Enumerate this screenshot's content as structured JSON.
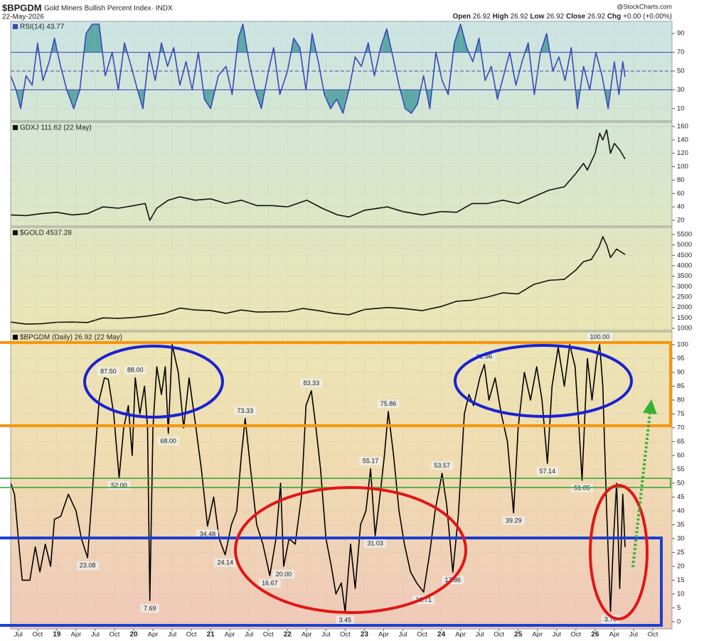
{
  "header": {
    "symbol": "$BPGDM",
    "name": "Gold Miners Bullish Percent Index· INDX",
    "date": "22-May-2026",
    "watermark": "@StockCharts.com",
    "quote": [
      {
        "label": "Open",
        "value": "26.92"
      },
      {
        "label": "High",
        "value": "26.92"
      },
      {
        "label": "Low",
        "value": "26.92"
      },
      {
        "label": "Close",
        "value": "26.92"
      },
      {
        "label": "Chg",
        "value": "+0.00 (+0.00%)"
      }
    ]
  },
  "chart_data": [
    {
      "type": "line",
      "title": "RSI(14) 43.77",
      "color": "#3a46b8",
      "fill_color": "#5ea9a8",
      "grid": true,
      "xlim": [
        2018.4,
        2027.0
      ],
      "ylim": [
        -3,
        103
      ],
      "yticks": [
        10,
        30,
        50,
        70,
        90
      ],
      "overbought": 70,
      "midline": 50,
      "oversold": 30,
      "x": [
        2018.4,
        2018.47,
        2018.53,
        2018.6,
        2018.68,
        2018.75,
        2018.82,
        2018.9,
        2018.97,
        2019.05,
        2019.13,
        2019.22,
        2019.3,
        2019.38,
        2019.46,
        2019.55,
        2019.63,
        2019.72,
        2019.8,
        2019.88,
        2019.95,
        2020.05,
        2020.12,
        2020.2,
        2020.28,
        2020.36,
        2020.44,
        2020.52,
        2020.6,
        2020.68,
        2020.76,
        2020.84,
        2020.92,
        2021.0,
        2021.1,
        2021.2,
        2021.28,
        2021.36,
        2021.42,
        2021.5,
        2021.58,
        2021.66,
        2021.74,
        2021.82,
        2021.9,
        2022.0,
        2022.08,
        2022.16,
        2022.24,
        2022.32,
        2022.4,
        2022.48,
        2022.56,
        2022.64,
        2022.72,
        2022.8,
        2022.88,
        2022.96,
        2023.05,
        2023.13,
        2023.21,
        2023.29,
        2023.37,
        2023.45,
        2023.53,
        2023.61,
        2023.69,
        2023.77,
        2023.85,
        2023.93,
        2024.01,
        2024.09,
        2024.17,
        2024.25,
        2024.33,
        2024.41,
        2024.49,
        2024.57,
        2024.65,
        2024.73,
        2024.81,
        2024.89,
        2024.97,
        2025.05,
        2025.13,
        2025.21,
        2025.29,
        2025.37,
        2025.45,
        2025.53,
        2025.61,
        2025.69,
        2025.77,
        2025.85,
        2025.93,
        2026.01,
        2026.09,
        2026.17,
        2026.25,
        2026.31,
        2026.36,
        2026.39
      ],
      "values": [
        45,
        30,
        10,
        45,
        35,
        80,
        40,
        60,
        85,
        55,
        30,
        10,
        30,
        90,
        100,
        100,
        45,
        70,
        30,
        80,
        60,
        30,
        10,
        70,
        40,
        80,
        55,
        75,
        35,
        60,
        30,
        70,
        20,
        10,
        45,
        55,
        25,
        85,
        100,
        60,
        30,
        10,
        45,
        75,
        25,
        50,
        85,
        75,
        30,
        90,
        60,
        25,
        10,
        20,
        5,
        30,
        65,
        55,
        80,
        45,
        75,
        95,
        65,
        35,
        10,
        5,
        15,
        45,
        10,
        70,
        40,
        25,
        80,
        100,
        75,
        60,
        85,
        40,
        55,
        20,
        45,
        70,
        35,
        60,
        80,
        25,
        70,
        90,
        50,
        65,
        40,
        75,
        10,
        55,
        30,
        70,
        45,
        10,
        60,
        25,
        60,
        43.77
      ]
    },
    {
      "type": "line",
      "title": "GDXJ 111.62 (22 May)",
      "color": "#111111",
      "grid": true,
      "xlim": [
        2018.4,
        2027.0
      ],
      "ylim": [
        11.5,
        166.4
      ],
      "yticks": [
        20,
        40,
        60,
        80,
        100,
        120,
        140,
        160
      ],
      "x": [
        2018.4,
        2018.6,
        2018.8,
        2019.0,
        2019.2,
        2019.4,
        2019.6,
        2019.8,
        2020.0,
        2020.15,
        2020.21,
        2020.3,
        2020.45,
        2020.6,
        2020.8,
        2021.0,
        2021.2,
        2021.4,
        2021.6,
        2021.8,
        2022.0,
        2022.25,
        2022.45,
        2022.65,
        2022.8,
        2023.0,
        2023.3,
        2023.5,
        2023.75,
        2024.0,
        2024.2,
        2024.4,
        2024.6,
        2024.8,
        2025.0,
        2025.2,
        2025.4,
        2025.6,
        2025.75,
        2025.85,
        2025.9,
        2026.0,
        2026.06,
        2026.1,
        2026.15,
        2026.2,
        2026.25,
        2026.32,
        2026.39
      ],
      "values": [
        28,
        27,
        30,
        32,
        28,
        30,
        40,
        38,
        42,
        45,
        20,
        38,
        50,
        55,
        50,
        52,
        45,
        50,
        42,
        42,
        40,
        50,
        38,
        28,
        25,
        35,
        40,
        33,
        28,
        33,
        32,
        45,
        45,
        50,
        45,
        55,
        65,
        70,
        90,
        105,
        95,
        120,
        150,
        140,
        155,
        120,
        135,
        125,
        111.62
      ]
    },
    {
      "type": "line",
      "title": "$GOLD 4537.28",
      "color": "#111111",
      "grid": true,
      "xlim": [
        2018.4,
        2027.0
      ],
      "ylim": [
        898,
        5841
      ],
      "yticks": [
        1000,
        1500,
        2000,
        2500,
        3000,
        3500,
        4000,
        4500,
        5000,
        5500
      ],
      "x": [
        2018.4,
        2018.6,
        2018.8,
        2019.0,
        2019.2,
        2019.4,
        2019.6,
        2019.8,
        2020.0,
        2020.2,
        2020.4,
        2020.6,
        2020.8,
        2021.0,
        2021.2,
        2021.4,
        2021.6,
        2021.8,
        2022.0,
        2022.2,
        2022.4,
        2022.6,
        2022.8,
        2023.0,
        2023.3,
        2023.5,
        2023.75,
        2024.0,
        2024.2,
        2024.4,
        2024.6,
        2024.8,
        2025.0,
        2025.2,
        2025.4,
        2025.6,
        2025.75,
        2025.85,
        2025.95,
        2026.05,
        2026.1,
        2026.15,
        2026.2,
        2026.28,
        2026.39
      ],
      "values": [
        1300,
        1200,
        1220,
        1290,
        1300,
        1280,
        1500,
        1480,
        1520,
        1600,
        1720,
        1970,
        1880,
        1850,
        1720,
        1880,
        1780,
        1790,
        1800,
        1950,
        1850,
        1720,
        1650,
        1900,
        2000,
        1950,
        1850,
        2050,
        2300,
        2350,
        2500,
        2700,
        2650,
        3100,
        3300,
        3350,
        3800,
        4200,
        4300,
        4900,
        5400,
        5000,
        4400,
        4800,
        4537.28
      ]
    },
    {
      "type": "line",
      "title": "$BPGDM (Daily) 26.92 (22 May)",
      "color": "#000000",
      "grid": true,
      "xlim": [
        2018.4,
        2027.0
      ],
      "ylim": [
        -2.6,
        104.6
      ],
      "yticks": [
        0,
        5,
        10,
        15,
        20,
        25,
        30,
        35,
        40,
        45,
        50,
        55,
        60,
        65,
        70,
        75,
        80,
        85,
        90,
        95,
        100
      ],
      "xticks": [
        {
          "value": 2018.5,
          "label": "Jul"
        },
        {
          "value": 2018.75,
          "label": "Oct"
        },
        {
          "value": 2019,
          "label": "19"
        },
        {
          "value": 2019.25,
          "label": "Apr"
        },
        {
          "value": 2019.5,
          "label": "Jul"
        },
        {
          "value": 2019.75,
          "label": "Oct"
        },
        {
          "value": 2020,
          "label": "20"
        },
        {
          "value": 2020.25,
          "label": "Apr"
        },
        {
          "value": 2020.5,
          "label": "Jul"
        },
        {
          "value": 2020.75,
          "label": "Oct"
        },
        {
          "value": 2021,
          "label": "21"
        },
        {
          "value": 2021.25,
          "label": "Apr"
        },
        {
          "value": 2021.5,
          "label": "Jul"
        },
        {
          "value": 2021.75,
          "label": "Oct"
        },
        {
          "value": 2022,
          "label": "22"
        },
        {
          "value": 2022.25,
          "label": "Apr"
        },
        {
          "value": 2022.5,
          "label": "Jul"
        },
        {
          "value": 2022.75,
          "label": "Oct"
        },
        {
          "value": 2023,
          "label": "23"
        },
        {
          "value": 2023.25,
          "label": "Apr"
        },
        {
          "value": 2023.5,
          "label": "Jul"
        },
        {
          "value": 2023.75,
          "label": "Oct"
        },
        {
          "value": 2024,
          "label": "24"
        },
        {
          "value": 2024.25,
          "label": "Apr"
        },
        {
          "value": 2024.5,
          "label": "Jul"
        },
        {
          "value": 2024.75,
          "label": "Oct"
        },
        {
          "value": 2025,
          "label": "25"
        },
        {
          "value": 2025.25,
          "label": "Apr"
        },
        {
          "value": 2025.5,
          "label": "Jul"
        },
        {
          "value": 2025.75,
          "label": "Oct"
        },
        {
          "value": 2026,
          "label": "26"
        },
        {
          "value": 2026.25,
          "label": "Apr"
        },
        {
          "value": 2026.5,
          "label": "Jul"
        },
        {
          "value": 2026.75,
          "label": "Oct"
        }
      ],
      "x": [
        2018.4,
        2018.45,
        2018.5,
        2018.55,
        2018.65,
        2018.72,
        2018.78,
        2018.85,
        2018.92,
        2018.97,
        2019.05,
        2019.15,
        2019.25,
        2019.32,
        2019.4,
        2019.47,
        2019.55,
        2019.62,
        2019.67,
        2019.74,
        2019.81,
        2019.87,
        2019.93,
        2019.98,
        2020.02,
        2020.08,
        2020.14,
        2020.18,
        2020.21,
        2020.25,
        2020.3,
        2020.36,
        2020.41,
        2020.45,
        2020.5,
        2020.58,
        2020.65,
        2020.72,
        2020.8,
        2020.88,
        2020.96,
        2021.04,
        2021.11,
        2021.19,
        2021.27,
        2021.34,
        2021.4,
        2021.45,
        2021.52,
        2021.6,
        2021.68,
        2021.77,
        2021.85,
        2021.91,
        2021.95,
        2022.02,
        2022.1,
        2022.18,
        2022.24,
        2022.31,
        2022.37,
        2022.43,
        2022.5,
        2022.57,
        2022.63,
        2022.7,
        2022.75,
        2022.82,
        2022.88,
        2022.95,
        2023.02,
        2023.08,
        2023.14,
        2023.2,
        2023.26,
        2023.31,
        2023.38,
        2023.45,
        2023.52,
        2023.6,
        2023.68,
        2023.77,
        2023.85,
        2023.92,
        2024.01,
        2024.07,
        2024.15,
        2024.22,
        2024.3,
        2024.36,
        2024.42,
        2024.5,
        2024.56,
        2024.62,
        2024.7,
        2024.78,
        2024.86,
        2024.94,
        2025.0,
        2025.08,
        2025.16,
        2025.24,
        2025.31,
        2025.38,
        2025.44,
        2025.52,
        2025.6,
        2025.67,
        2025.74,
        2025.79,
        2025.83,
        2025.9,
        2025.96,
        2026.02,
        2026.06,
        2026.1,
        2026.15,
        2026.2,
        2026.24,
        2026.28,
        2026.32,
        2026.36,
        2026.39
      ],
      "values": [
        50,
        46,
        30,
        15,
        15,
        27,
        18,
        28,
        20,
        37,
        38,
        46,
        40,
        30,
        23.08,
        50,
        80,
        88,
        87.5,
        75,
        52,
        70,
        78,
        60,
        88,
        75,
        85,
        70,
        7.69,
        70,
        92,
        82,
        92,
        68,
        100,
        90,
        70,
        88,
        72,
        55,
        34.48,
        45,
        30,
        24.14,
        35,
        40,
        60,
        73.33,
        55,
        35,
        28,
        16.67,
        30,
        50,
        20,
        30,
        28,
        45,
        78,
        83.33,
        70,
        55,
        30,
        20,
        10,
        14,
        3.45,
        28,
        12,
        35,
        40,
        55.17,
        31.03,
        45,
        60,
        75.86,
        60,
        40,
        28,
        18,
        14,
        10.71,
        25,
        40,
        53.57,
        42,
        17.86,
        38,
        75,
        82,
        78,
        88,
        92.86,
        80,
        88,
        75,
        65,
        39.29,
        70,
        90,
        80,
        92,
        80,
        57.14,
        85,
        99,
        85,
        100,
        92,
        70,
        51.05,
        95,
        80,
        95,
        100,
        85,
        40,
        3.7,
        30,
        50,
        12,
        46,
        26.92
      ],
      "labeled_points": {
        "x": [
          2019.4,
          2019.67,
          2019.81,
          2020.02,
          2020.21,
          2020.45,
          2020.96,
          2021.19,
          2021.45,
          2021.77,
          2021.95,
          2022.31,
          2022.75,
          2023.08,
          2023.14,
          2023.31,
          2023.77,
          2024.01,
          2024.15,
          2024.56,
          2024.94,
          2025.38,
          2025.83,
          2026.06,
          2026.2
        ],
        "values": [
          23.08,
          87.5,
          52,
          88,
          7.69,
          68,
          34.48,
          24.14,
          73.33,
          16.67,
          20,
          83.33,
          3.45,
          55.17,
          31.03,
          75.86,
          10.71,
          53.57,
          17.86,
          92.86,
          39.29,
          57.14,
          51.05,
          100,
          3.7
        ],
        "value_labels": [
          "23.08",
          "87.50",
          "52.00",
          "88.00",
          "7.69",
          "68.00",
          "34.48",
          "24.14",
          "73.33",
          "16.67",
          "20.00",
          "83.33",
          "3.45",
          "55.17",
          "31.03",
          "75.86",
          "10.71",
          "53.57",
          "17.86",
          "92.86",
          "39.29",
          "57.14",
          "51.05",
          "100.00",
          "3.70"
        ]
      }
    }
  ]
}
